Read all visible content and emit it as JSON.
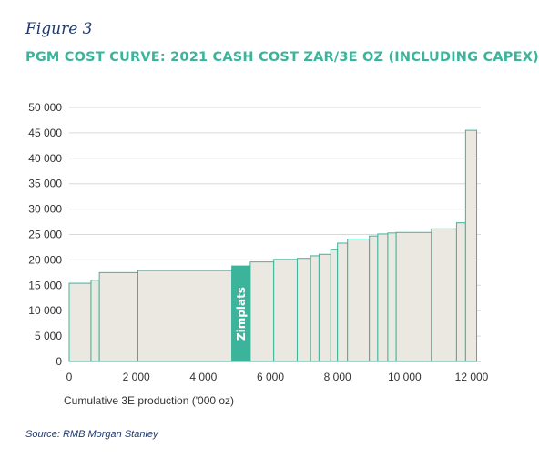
{
  "figure_label": "Figure 3",
  "title": "PGM COST CURVE: 2021 CASH COST ZAR/3E OZ (INCLUDING CAPEX)",
  "source": "Source: RMB Morgan Stanley",
  "colors": {
    "bar_fill": "#ebe8e2",
    "bar_stroke": "#3bb49b",
    "highlight": "#3bb49b",
    "title": "#3bb49b",
    "figure_label": "#1f3a6b"
  },
  "chart_data": {
    "type": "bar",
    "subtype": "variable-width cost curve",
    "xlabel": "Cumulative 3E production ('000 oz)",
    "ylabel": "",
    "xlim": [
      0,
      12000
    ],
    "ylim": [
      0,
      50000
    ],
    "x_ticks": [
      0,
      2000,
      4000,
      6000,
      8000,
      10000,
      12000
    ],
    "x_tick_labels": [
      "0",
      "2 000",
      "4 000",
      "6 000",
      "8 000",
      "10 000",
      "12 000"
    ],
    "y_ticks": [
      0,
      5000,
      10000,
      15000,
      20000,
      25000,
      30000,
      35000,
      40000,
      45000,
      50000
    ],
    "y_tick_labels": [
      "0",
      "5 000",
      "10 000",
      "15 000",
      "20 000",
      "25 000",
      "30 000",
      "35 000",
      "40 000",
      "45 000",
      "50 000"
    ],
    "grid": "horizontal",
    "highlight_label": "Zimplats",
    "bars": [
      {
        "x0": 0,
        "x1": 650,
        "value": 15400
      },
      {
        "x0": 650,
        "x1": 900,
        "value": 16000
      },
      {
        "x0": 900,
        "x1": 2050,
        "value": 17500
      },
      {
        "x0": 2050,
        "x1": 4850,
        "value": 17900
      },
      {
        "x0": 4850,
        "x1": 5400,
        "value": 18800,
        "label": "Zimplats",
        "highlight": true
      },
      {
        "x0": 5400,
        "x1": 6100,
        "value": 19600
      },
      {
        "x0": 6100,
        "x1": 6800,
        "value": 20100
      },
      {
        "x0": 6800,
        "x1": 7200,
        "value": 20300
      },
      {
        "x0": 7200,
        "x1": 7450,
        "value": 20800
      },
      {
        "x0": 7450,
        "x1": 7800,
        "value": 21100
      },
      {
        "x0": 7800,
        "x1": 8000,
        "value": 22000
      },
      {
        "x0": 8000,
        "x1": 8300,
        "value": 23300
      },
      {
        "x0": 8300,
        "x1": 8950,
        "value": 24100
      },
      {
        "x0": 8950,
        "x1": 9200,
        "value": 24700
      },
      {
        "x0": 9200,
        "x1": 9500,
        "value": 25100
      },
      {
        "x0": 9500,
        "x1": 9750,
        "value": 25300
      },
      {
        "x0": 9750,
        "x1": 10800,
        "value": 25400
      },
      {
        "x0": 10800,
        "x1": 11550,
        "value": 26100
      },
      {
        "x0": 11550,
        "x1": 11820,
        "value": 27300
      },
      {
        "x0": 11820,
        "x1": 12150,
        "value": 45500
      }
    ]
  }
}
